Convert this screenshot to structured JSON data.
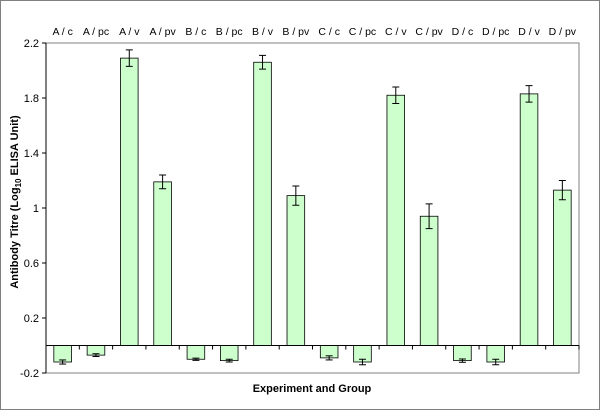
{
  "chart_data": {
    "type": "bar",
    "title": "",
    "xlabel": "Experiment and Group",
    "ylabel_parts": [
      "Antibody Titre (Log",
      "10",
      " ELISA Unit)"
    ],
    "categories": [
      "A / c",
      "A / pc",
      "A / v",
      "A / pv",
      "B / c",
      "B / pc",
      "B / v",
      "B / pv",
      "C / c",
      "C / pc",
      "C / v",
      "C / pv",
      "D / c",
      "D / pc",
      "D / v",
      "D / pv"
    ],
    "values": [
      -0.12,
      -0.07,
      2.09,
      1.19,
      -0.1,
      -0.11,
      2.06,
      1.09,
      -0.09,
      -0.12,
      1.82,
      0.94,
      -0.11,
      -0.12,
      1.83,
      1.13
    ],
    "errors": [
      0.015,
      0.01,
      0.06,
      0.05,
      0.008,
      0.01,
      0.05,
      0.07,
      0.015,
      0.02,
      0.06,
      0.09,
      0.012,
      0.02,
      0.06,
      0.07
    ],
    "ylim": [
      -0.2,
      2.2
    ],
    "yticks": [
      -0.2,
      0.2,
      0.6,
      1,
      1.4,
      1.8,
      2.2
    ],
    "ytick_labels": [
      "-0.2",
      "0.2",
      "0.6",
      "1",
      "1.4",
      "1.8",
      "2.2"
    ],
    "grid": false,
    "legend": "none",
    "colors": {
      "bar_fill": "#ccffcc",
      "bar_stroke": "#000000",
      "axis": "#000000",
      "frame": "#808080"
    }
  }
}
